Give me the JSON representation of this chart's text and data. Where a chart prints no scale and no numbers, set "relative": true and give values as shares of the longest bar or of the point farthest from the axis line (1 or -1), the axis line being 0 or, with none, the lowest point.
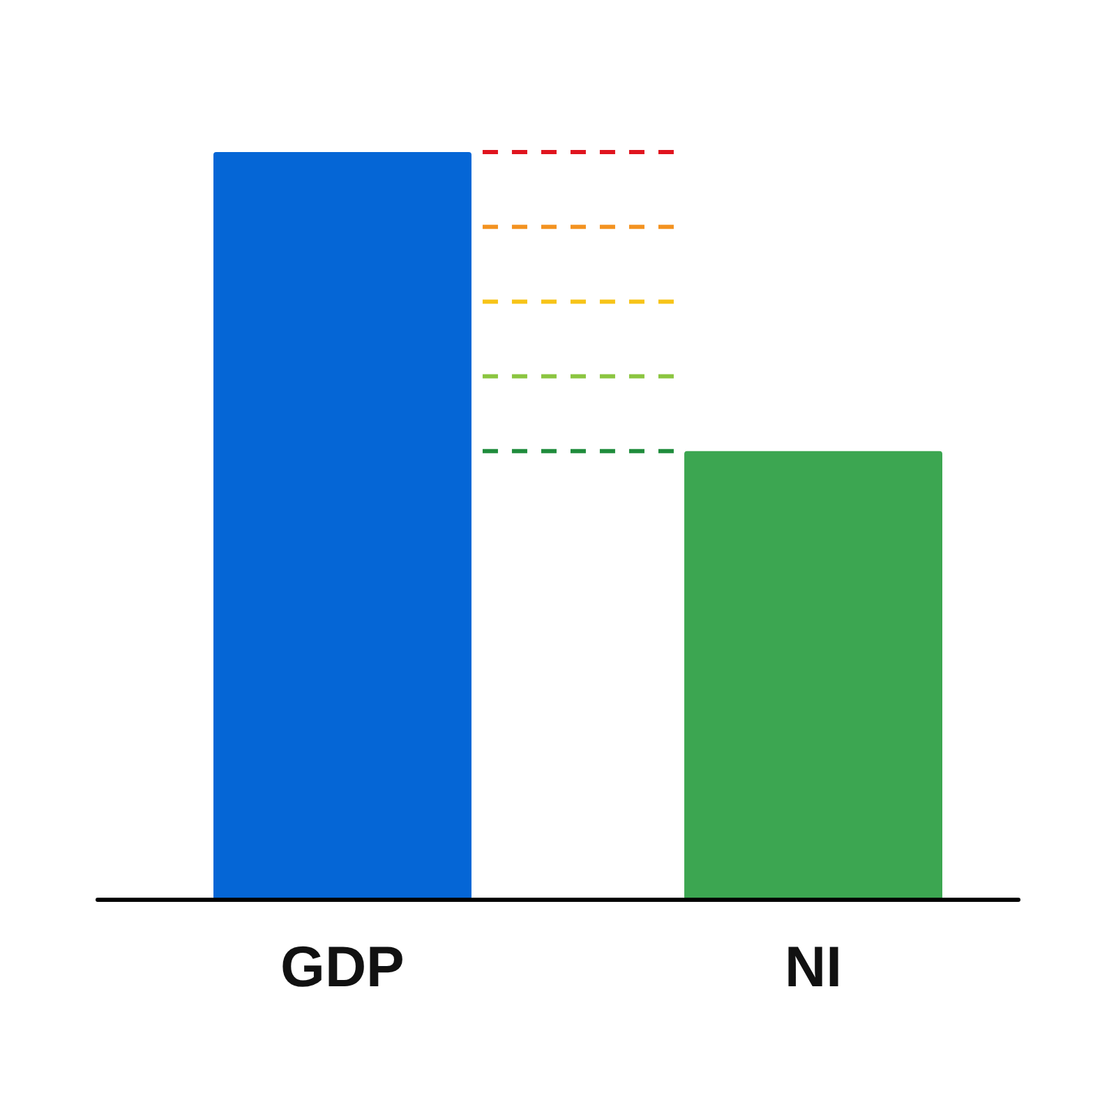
{
  "chart_data": {
    "type": "bar",
    "categories": [
      "GDP",
      "NI"
    ],
    "values": [
      1,
      0.6
    ],
    "colors": [
      "#0566d6",
      "#3ca651"
    ],
    "relative": true,
    "ref_lines": [
      {
        "axis": "y",
        "value": 1,
        "color": "#e0141e",
        "line_style": "dashed"
      },
      {
        "axis": "y",
        "value": 0.9,
        "color": "#f39220",
        "line_style": "dashed"
      },
      {
        "axis": "y",
        "value": 0.8,
        "color": "#f7c418",
        "line_style": "dashed"
      },
      {
        "axis": "y",
        "value": 0.7,
        "color": "#8bc540",
        "line_style": "dashed"
      },
      {
        "axis": "y",
        "value": 0.6,
        "color": "#1f8c3c",
        "line_style": "dashed"
      }
    ]
  }
}
